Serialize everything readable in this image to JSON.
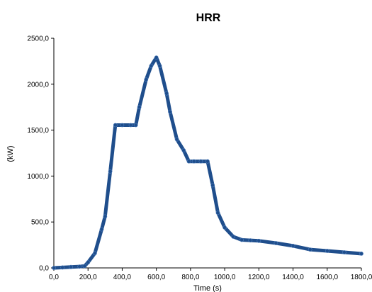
{
  "chart_data": {
    "type": "line",
    "title": "HRR",
    "xlabel": "Time (s)",
    "ylabel": "(kW)",
    "xlim": [
      0,
      1800
    ],
    "ylim": [
      0,
      2500
    ],
    "x_ticks": [
      0,
      200,
      400,
      600,
      800,
      1000,
      1200,
      1400,
      1600,
      1800
    ],
    "y_ticks": [
      0,
      500,
      1000,
      1500,
      2000,
      2500
    ],
    "x_tick_labels": [
      "0,0",
      "200,0",
      "400,0",
      "600,0",
      "800,0",
      "1000,0",
      "1200,0",
      "1400,0",
      "1600,0",
      "1800,0"
    ],
    "y_tick_labels": [
      "0,0",
      "500,0",
      "1000,0",
      "1500,0",
      "2000,0",
      "2500,0"
    ],
    "grid": false,
    "legend": "none",
    "series": [
      {
        "color": "#1f4e8c",
        "x": [
          0,
          50,
          100,
          150,
          180,
          200,
          240,
          280,
          300,
          330,
          360,
          400,
          450,
          480,
          500,
          540,
          570,
          600,
          620,
          660,
          680,
          720,
          760,
          790,
          820,
          860,
          900,
          930,
          960,
          1000,
          1050,
          1100,
          1150,
          1200,
          1300,
          1400,
          1500,
          1600,
          1700,
          1800
        ],
        "y": [
          0,
          5,
          10,
          15,
          20,
          60,
          160,
          420,
          560,
          1050,
          1555,
          1555,
          1555,
          1555,
          1750,
          2050,
          2200,
          2290,
          2200,
          1900,
          1700,
          1400,
          1280,
          1160,
          1160,
          1160,
          1160,
          900,
          600,
          440,
          340,
          305,
          300,
          295,
          270,
          240,
          200,
          185,
          170,
          155
        ]
      }
    ]
  }
}
